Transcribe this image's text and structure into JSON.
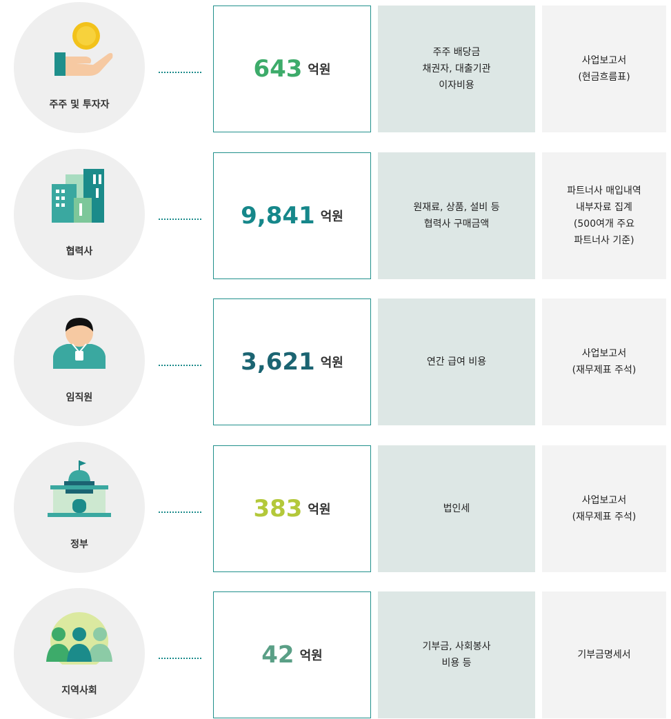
{
  "rows": [
    {
      "stakeholder": "주주 및 투자자",
      "amount": "643",
      "unit": "억원",
      "description": [
        "주주 배당금",
        "채권자, 대출기관",
        "이자비용"
      ],
      "source": [
        "사업보고서",
        "(현금흐름표)"
      ],
      "color": "#3dab6a"
    },
    {
      "stakeholder": "협력사",
      "amount": "9,841",
      "unit": "억원",
      "description": [
        "원재료, 상품, 설비 등",
        "협력사 구매금액"
      ],
      "source": [
        "파트너사 매입내역",
        "내부자료 집계",
        "(500여개 주요",
        "파트너사 기준)"
      ],
      "color": "#16878a"
    },
    {
      "stakeholder": "임직원",
      "amount": "3,621",
      "unit": "억원",
      "description": [
        "연간 급여 비용"
      ],
      "source": [
        "사업보고서",
        "(재무제표 주석)"
      ],
      "color": "#1b6472"
    },
    {
      "stakeholder": "정부",
      "amount": "383",
      "unit": "억원",
      "description": [
        "법인세"
      ],
      "source": [
        "사업보고서",
        "(재무제표 주석)"
      ],
      "color": "#b3c83a"
    },
    {
      "stakeholder": "지역사회",
      "amount": "42",
      "unit": "억원",
      "description": [
        "기부금, 사회봉사",
        "비용 등"
      ],
      "source": [
        "기부금명세서"
      ],
      "color": "#5a9f86"
    }
  ]
}
